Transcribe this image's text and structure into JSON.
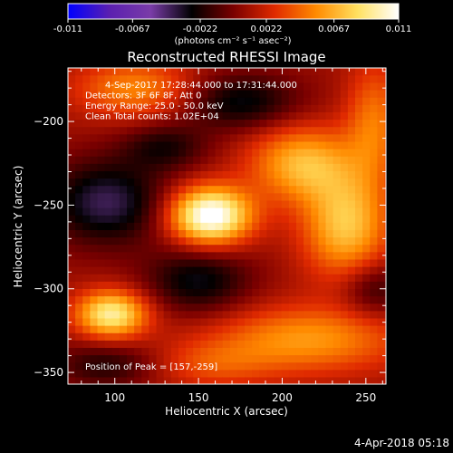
{
  "chart_data": {
    "type": "heatmap",
    "title": "Reconstructed RHESSI Image",
    "xlabel": "Heliocentric X (arcsec)",
    "ylabel": "Heliocentric Y (arcsec)",
    "xlim": [
      72,
      262
    ],
    "ylim": [
      -357,
      -168
    ],
    "x_ticks": [
      100,
      150,
      200,
      250
    ],
    "y_ticks": [
      -200,
      -250,
      -300,
      -350
    ],
    "colorbar": {
      "min": -0.011,
      "max": 0.011,
      "tick_values": [
        -0.011,
        -0.0067,
        -0.0022,
        0.0022,
        0.0067,
        0.011
      ],
      "tick_labels": [
        "-0.011",
        "-0.0067",
        "-0.0022",
        "0.0022",
        "0.0067",
        "0.011"
      ],
      "unit_label": "(photons cm⁻² s⁻¹ asec⁻²)",
      "colors": [
        "#0000ff",
        "#5a1fb0",
        "#7a3ca8",
        "#000000",
        "#7a0000",
        "#e02a00",
        "#ff8a00",
        "#ffe060",
        "#ffffff"
      ]
    },
    "annotations": [
      "4-Sep-2017 17:28:44.000 to 17:31:44.000",
      "Detectors: 3F 6F 8F, Att 0",
      "Energy Range: 25.0 - 50.0 keV",
      "Clean     Total counts: 1.02E+04"
    ],
    "peak_label": "Position of Peak = [157,-259]",
    "peak_position": [
      157,
      -259
    ],
    "sources": [
      {
        "x": 157,
        "y": -256,
        "amp": 0.011,
        "sx": 17,
        "sy": 12
      },
      {
        "x": 98,
        "y": -315,
        "amp": 0.0085,
        "sx": 15,
        "sy": 10
      },
      {
        "x": 212,
        "y": -225,
        "amp": 0.006,
        "sx": 22,
        "sy": 16
      },
      {
        "x": 238,
        "y": -262,
        "amp": 0.0065,
        "sx": 18,
        "sy": 22
      },
      {
        "x": 215,
        "y": -330,
        "amp": 0.005,
        "sx": 40,
        "sy": 14
      },
      {
        "x": 112,
        "y": -180,
        "amp": 0.0045,
        "sx": 25,
        "sy": 12
      },
      {
        "x": 255,
        "y": -200,
        "amp": 0.004,
        "sx": 12,
        "sy": 25
      },
      {
        "x": 158,
        "y": -345,
        "amp": 0.0025,
        "sx": 25,
        "sy": 10
      }
    ],
    "negative_regions": [
      {
        "x": 95,
        "y": -248,
        "amp": -0.005,
        "sx": 25,
        "sy": 18
      },
      {
        "x": 150,
        "y": -295,
        "amp": -0.004,
        "sx": 22,
        "sy": 14
      },
      {
        "x": 175,
        "y": -188,
        "amp": -0.004,
        "sx": 25,
        "sy": 12
      },
      {
        "x": 130,
        "y": -215,
        "amp": -0.003,
        "sx": 18,
        "sy": 10
      },
      {
        "x": 255,
        "y": -300,
        "amp": -0.003,
        "sx": 14,
        "sy": 12
      },
      {
        "x": 95,
        "y": -345,
        "amp": -0.003,
        "sx": 22,
        "sy": 10
      }
    ]
  },
  "footer": {
    "timestamp": "4-Apr-2018 05:18"
  }
}
